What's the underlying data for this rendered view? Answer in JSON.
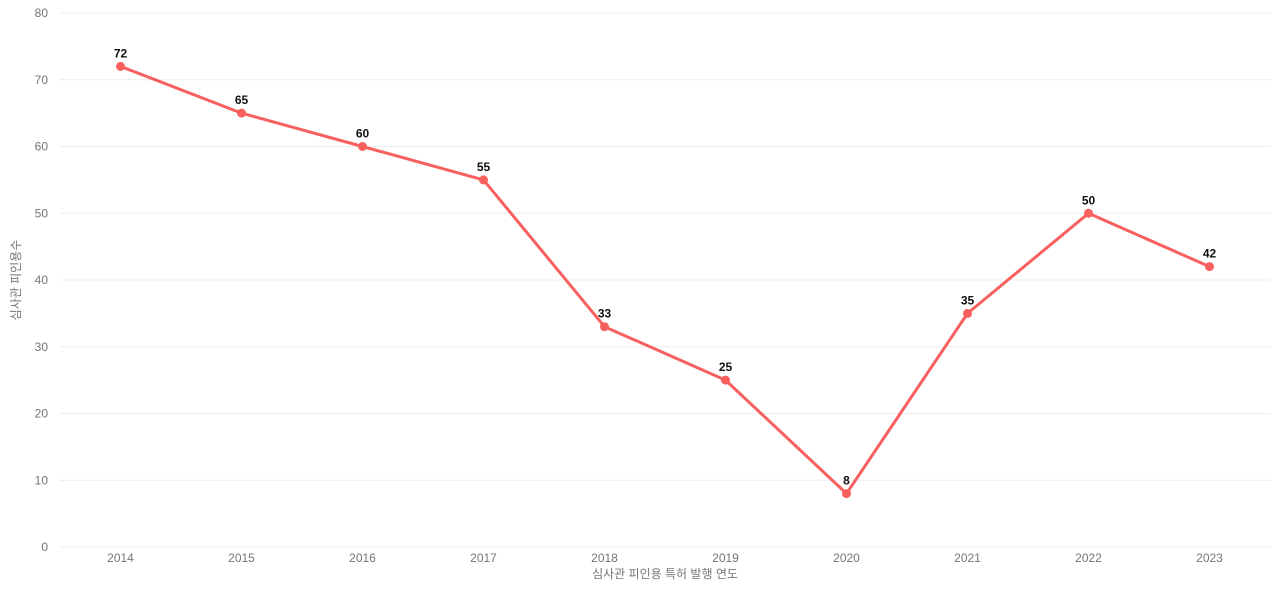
{
  "chart_data": {
    "type": "line",
    "title": "",
    "categories": [
      "2014",
      "2015",
      "2016",
      "2017",
      "2018",
      "2019",
      "2020",
      "2021",
      "2022",
      "2023"
    ],
    "values": [
      72,
      65,
      60,
      55,
      33,
      25,
      8,
      35,
      50,
      42
    ],
    "xlabel": "심사관 피인용 특허 발행 연도",
    "ylabel": "심사관 피인용수",
    "ylim": [
      0,
      80
    ],
    "ytick_step": 10,
    "yticks": [
      0,
      10,
      20,
      30,
      40,
      50,
      60,
      70,
      80
    ],
    "grid": true,
    "legend": false,
    "data_labels_visible": true,
    "colors": {
      "line": "#f8605f",
      "marker": "#f8605f",
      "point_label": "#111111",
      "tick_label": "#757575",
      "gridline": "#ececec",
      "background": "#ffffff"
    }
  }
}
